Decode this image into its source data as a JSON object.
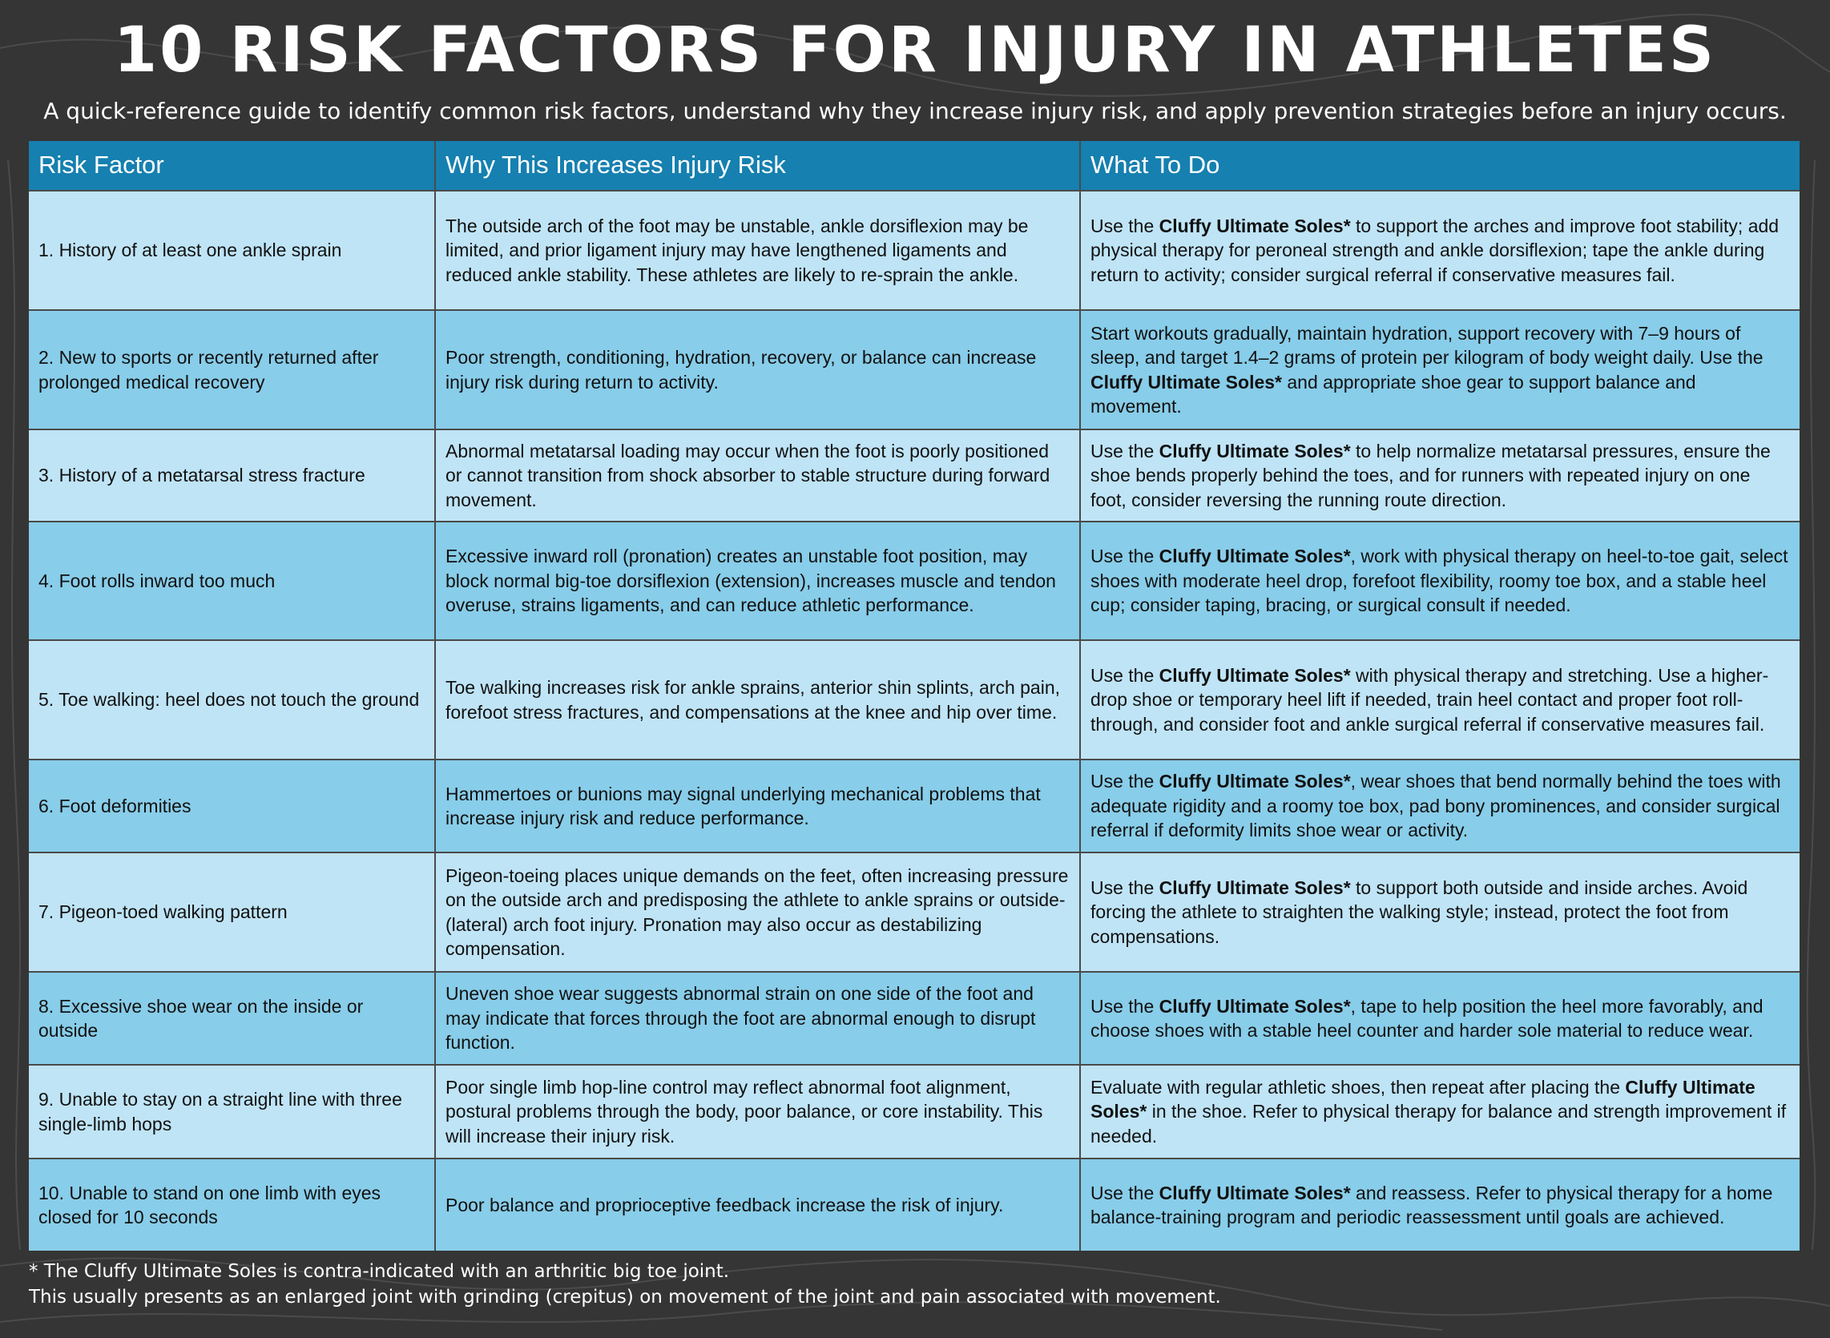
{
  "header": {
    "title": "10 RISK FACTORS FOR INJURY IN ATHLETES",
    "subtitle": "A quick-reference guide to identify common risk factors, understand why they increase injury risk, and apply prevention strategies before an injury occurs."
  },
  "table": {
    "columns": [
      "Risk Factor",
      "Why This Increases Injury Risk",
      "What To Do"
    ],
    "rows": [
      [
        "1. History of at least one ankle sprain",
        "The outside arch of the foot may be unstable, ankle dorsiflexion may be limited, and prior ligament injury may have lengthened ligaments and reduced ankle stability. These athletes are likely to re-sprain the ankle.",
        [
          "Use the ",
          "Cluffy Ultimate Soles*",
          " to support the arches and improve foot stability; add physical therapy for peroneal strength and ankle dorsiflexion; tape the ankle during return to activity; consider surgical referral if conservative measures fail."
        ]
      ],
      [
        "2. New to sports or recently returned after prolonged medical recovery",
        "Poor strength, conditioning, hydration, recovery, or balance can increase injury risk during return to activity.",
        [
          "Start workouts gradually, maintain hydration, support recovery with 7–9 hours of sleep, and target 1.4–2 grams of protein per kilogram of body weight daily. Use the ",
          "Cluffy Ultimate Soles*",
          " and appropriate shoe gear to support balance and movement."
        ]
      ],
      [
        "3. History of a metatarsal stress fracture",
        "Abnormal metatarsal loading may occur when the foot is poorly positioned or cannot transition from shock absorber to stable structure during forward movement.",
        [
          "Use the ",
          "Cluffy Ultimate Soles*",
          " to help normalize metatarsal pressures, ensure the shoe bends properly behind the toes, and for runners with repeated injury on one foot, consider reversing the running route direction."
        ]
      ],
      [
        "4. Foot rolls inward too much",
        "Excessive inward roll (pronation) creates an unstable foot position, may block normal big-toe dorsiflexion (extension), increases muscle and tendon overuse, strains ligaments, and can reduce athletic performance.",
        [
          "Use the ",
          "Cluffy Ultimate Soles*",
          ", work with physical therapy on heel-to-toe gait, select shoes with moderate heel drop, forefoot flexibility, roomy toe box, and a stable heel cup; consider taping, bracing, or surgical consult if needed."
        ]
      ],
      [
        "5. Toe walking: heel does not touch the ground",
        "Toe walking increases risk for ankle sprains, anterior shin splints, arch pain, forefoot stress fractures, and compensations at the knee and hip over time.",
        [
          "Use the ",
          "Cluffy Ultimate Soles*",
          " with physical therapy and stretching. Use a higher-drop shoe or temporary heel lift if needed, train heel contact and proper foot roll-through, and consider foot and ankle surgical referral if conservative measures fail."
        ]
      ],
      [
        "6. Foot deformities",
        "Hammertoes or bunions may signal underlying mechanical problems that increase injury risk and reduce performance.",
        [
          "Use the ",
          "Cluffy Ultimate Soles*",
          ", wear shoes that bend normally behind the toes with adequate rigidity and a roomy toe box, pad bony prominences, and consider surgical referral if deformity limits shoe wear or activity."
        ]
      ],
      [
        "7. Pigeon-toed walking pattern",
        "Pigeon-toeing places unique demands on the feet, often increasing pressure on the outside arch and predisposing the athlete to ankle sprains or outside-(lateral) arch foot injury. Pronation may also occur as destabilizing compensation.",
        [
          "Use the ",
          "Cluffy Ultimate Soles*",
          " to support both outside and inside arches. Avoid forcing the athlete to straighten the walking style; instead, protect the foot from compensations."
        ]
      ],
      [
        "8. Excessive shoe wear on the inside or outside",
        "Uneven shoe wear suggests abnormal strain on one side of the foot and may indicate that forces through the foot are abnormal enough to disrupt function.",
        [
          "Use the ",
          "Cluffy Ultimate Soles*",
          ", tape to help position the heel more favorably, and choose shoes with a stable heel counter and harder sole material to reduce wear."
        ]
      ],
      [
        "9. Unable to stay on a straight line with three single-limb hops",
        "Poor single limb hop-line control may reflect abnormal foot alignment, postural problems through the body, poor balance, or core instability. This will increase their injury risk.",
        [
          "Evaluate with regular athletic shoes, then repeat after placing the ",
          "Cluffy Ultimate Soles*",
          " in the shoe. Refer to physical therapy for balance and strength improvement if needed."
        ]
      ],
      [
        "10. Unable to stand on one limb with eyes closed for 10 seconds",
        "Poor balance and proprioceptive feedback increase the risk of injury.",
        [
          "Use the ",
          "Cluffy Ultimate Soles*",
          " and reassess. Refer to physical therapy for a home balance-training program and periodic reassessment until goals are achieved."
        ]
      ]
    ]
  },
  "footnote": [
    "* The Cluffy Ultimate Soles is contra-indicated with an arthritic big toe joint.",
    "This usually presents as an enlarged joint with grinding (crepitus) on movement of the joint and pain associated with movement."
  ]
}
